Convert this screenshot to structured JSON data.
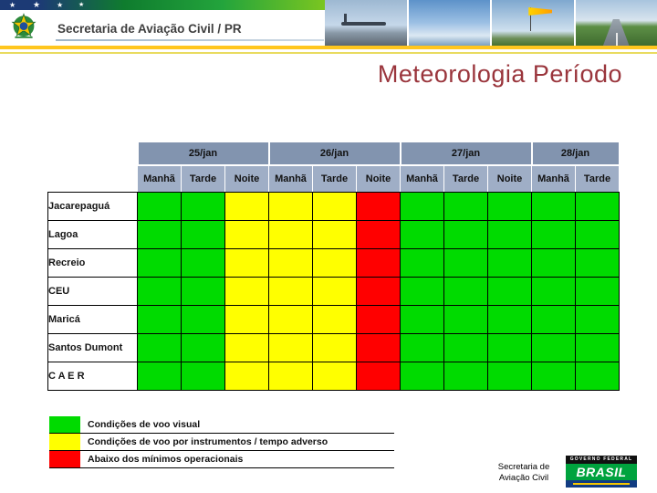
{
  "header": {
    "title": "Secretaria de Aviação Civil / PR"
  },
  "slide": {
    "title": "Meteorologia Período"
  },
  "table": {
    "date_groups": [
      {
        "label": "25/jan",
        "periods": [
          "Manhã",
          "Tarde",
          "Noite"
        ]
      },
      {
        "label": "26/jan",
        "periods": [
          "Manhã",
          "Tarde",
          "Noite"
        ]
      },
      {
        "label": "27/jan",
        "periods": [
          "Manhã",
          "Tarde",
          "Noite"
        ]
      },
      {
        "label": "28/jan",
        "periods": [
          "Manhã",
          "Tarde"
        ]
      }
    ],
    "rows": [
      {
        "label": "Jacarepaguá",
        "cells": [
          "green",
          "green",
          "yellow",
          "yellow",
          "yellow",
          "red",
          "green",
          "green",
          "green",
          "green",
          "green"
        ]
      },
      {
        "label": "Lagoa",
        "cells": [
          "green",
          "green",
          "yellow",
          "yellow",
          "yellow",
          "red",
          "green",
          "green",
          "green",
          "green",
          "green"
        ]
      },
      {
        "label": "Recreio",
        "cells": [
          "green",
          "green",
          "yellow",
          "yellow",
          "yellow",
          "red",
          "green",
          "green",
          "green",
          "green",
          "green"
        ]
      },
      {
        "label": "CEU",
        "cells": [
          "green",
          "green",
          "yellow",
          "yellow",
          "yellow",
          "red",
          "green",
          "green",
          "green",
          "green",
          "green"
        ]
      },
      {
        "label": "Maricá",
        "cells": [
          "green",
          "green",
          "yellow",
          "yellow",
          "yellow",
          "red",
          "green",
          "green",
          "green",
          "green",
          "green"
        ]
      },
      {
        "label": "Santos Dumont",
        "cells": [
          "green",
          "green",
          "yellow",
          "yellow",
          "yellow",
          "red",
          "green",
          "green",
          "green",
          "green",
          "green"
        ]
      },
      {
        "label": "C A E R",
        "cells": [
          "green",
          "green",
          "yellow",
          "yellow",
          "yellow",
          "red",
          "green",
          "green",
          "green",
          "green",
          "green"
        ]
      }
    ]
  },
  "legend": [
    {
      "color": "green",
      "label": "Condições de voo visual"
    },
    {
      "color": "yellow",
      "label": "Condições de voo por instrumentos / tempo adverso"
    },
    {
      "color": "red",
      "label": "Abaixo dos mínimos operacionais"
    }
  ],
  "footer": {
    "org_line1": "Secretaria de",
    "org_line2": "Aviação Civil",
    "logo": {
      "top": "GOVERNO FEDERAL",
      "brand": "BRASIL"
    }
  },
  "colors": {
    "green": "#00DB00",
    "yellow": "#FFFF00",
    "red": "#FF0000",
    "date_header": "#8294AF",
    "period_header": "#9FAEC6",
    "title": "#9A353C",
    "accent_yellow": "#FFC61E",
    "flag_green": "#149639"
  }
}
